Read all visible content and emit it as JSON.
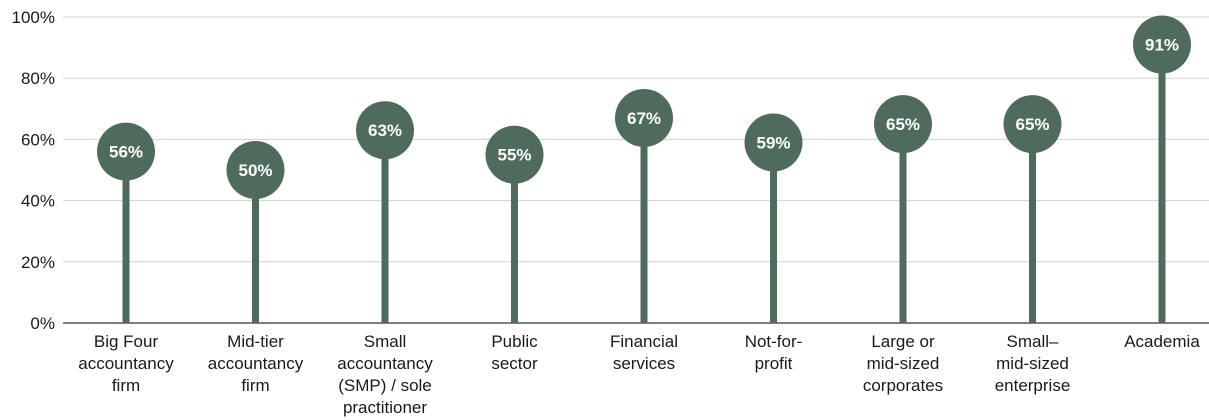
{
  "chart_data": {
    "type": "lollipop",
    "categories": [
      [
        "Big Four",
        "accountancy",
        "firm"
      ],
      [
        "Mid-tier",
        "accountancy",
        "firm"
      ],
      [
        "Small",
        "accountancy",
        "(SMP) / sole",
        "practitioner"
      ],
      [
        "Public",
        "sector"
      ],
      [
        "Financial",
        "services"
      ],
      [
        "Not-for-",
        "profit"
      ],
      [
        "Large or",
        "mid-sized",
        "corporates"
      ],
      [
        "Small–",
        "mid-sized",
        "enterprise"
      ],
      [
        "Academia"
      ]
    ],
    "values": [
      56,
      50,
      63,
      55,
      67,
      59,
      65,
      65,
      91
    ],
    "value_labels": [
      "56%",
      "50%",
      "63%",
      "55%",
      "67%",
      "59%",
      "65%",
      "65%",
      "91%"
    ],
    "y_ticks": [
      0,
      20,
      40,
      60,
      80,
      100
    ],
    "y_tick_labels": [
      "0%",
      "20%",
      "40%",
      "60%",
      "80%",
      "100%"
    ],
    "ylim": [
      0,
      100
    ],
    "grid": true,
    "colors": {
      "marker": "#4f6b5b",
      "grid": "#d0d0d0",
      "axis": "#333333"
    }
  }
}
